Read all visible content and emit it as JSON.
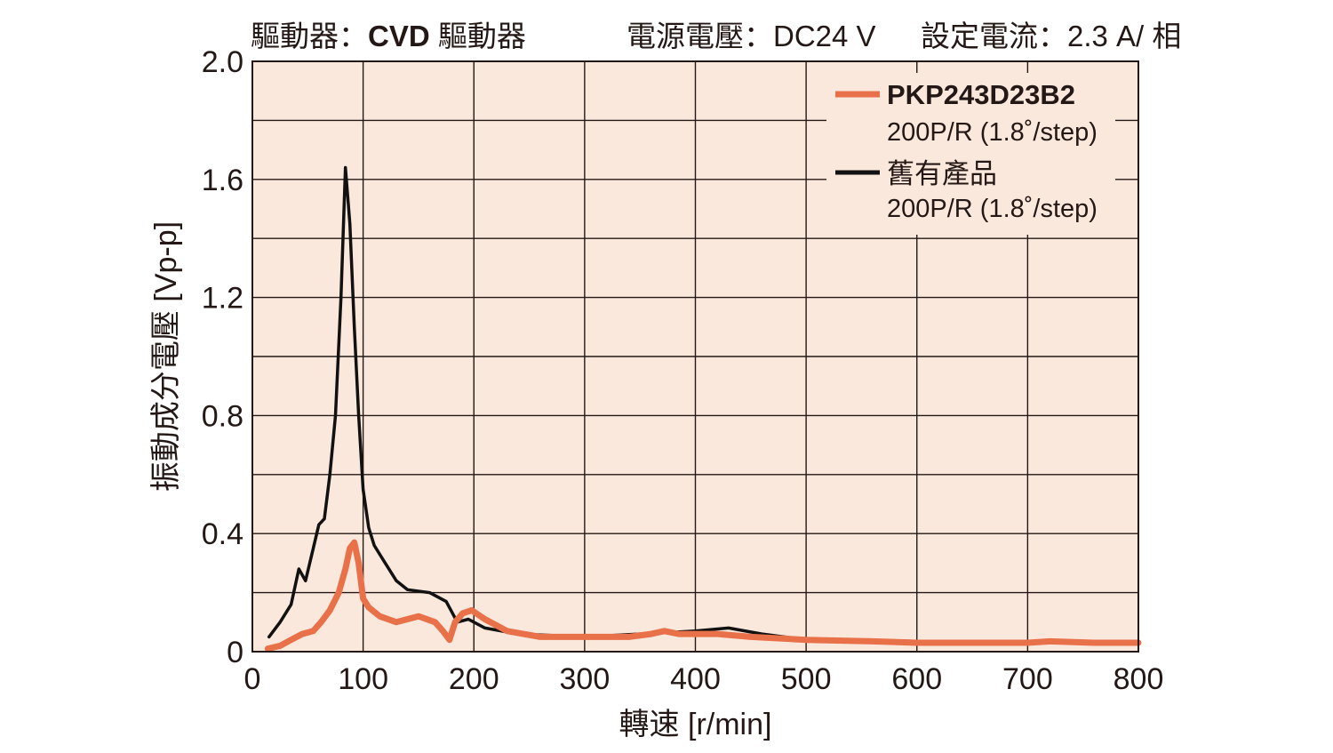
{
  "header": {
    "driver_label": "驅動器：",
    "driver_value_bold": "CVD",
    "driver_value_rest": " 驅動器",
    "voltage_label": "電源電壓：",
    "voltage_value": "DC24 V",
    "current_label": "設定電流：",
    "current_value": "2.3 A/ 相"
  },
  "colors": {
    "plot_background": "#fbe8dc",
    "grid": "#231815",
    "new_product": "#e8714a",
    "old_product": "#111111",
    "text": "#231815"
  },
  "chart_data": {
    "type": "line",
    "xlabel": "轉速 [r/min]",
    "ylabel": "振動成分電壓 [Vp-p]",
    "xlim": [
      0,
      800
    ],
    "ylim": [
      0,
      2.0
    ],
    "x_ticks": [
      0,
      100,
      200,
      300,
      400,
      500,
      600,
      700,
      800
    ],
    "x_tick_labels": [
      "0",
      "100",
      "200",
      "300",
      "400",
      "500",
      "600",
      "700",
      "800"
    ],
    "y_ticks": [
      0,
      0.4,
      0.8,
      1.2,
      1.6,
      2.0
    ],
    "y_tick_labels": [
      "0",
      "0.4",
      "0.8",
      "1.2",
      "1.6",
      "2.0"
    ],
    "grid": true,
    "legend_position": "top-right",
    "series": [
      {
        "name": "PKP243D23B2",
        "subtitle": "200P/R (1.8˚/step)",
        "color": "#e8714a",
        "x": [
          14,
          25,
          35,
          45,
          55,
          62,
          70,
          78,
          84,
          88,
          92,
          96,
          100,
          105,
          115,
          130,
          150,
          165,
          172,
          178,
          183,
          190,
          198,
          210,
          230,
          260,
          300,
          340,
          360,
          372,
          385,
          420,
          450,
          500,
          560,
          600,
          650,
          700,
          720,
          760,
          800
        ],
        "y": [
          0.01,
          0.02,
          0.04,
          0.06,
          0.07,
          0.1,
          0.14,
          0.2,
          0.28,
          0.35,
          0.37,
          0.3,
          0.18,
          0.15,
          0.12,
          0.1,
          0.12,
          0.1,
          0.07,
          0.04,
          0.1,
          0.13,
          0.14,
          0.11,
          0.07,
          0.05,
          0.05,
          0.05,
          0.06,
          0.07,
          0.06,
          0.06,
          0.05,
          0.04,
          0.035,
          0.03,
          0.03,
          0.03,
          0.035,
          0.03,
          0.03
        ]
      },
      {
        "name": "舊有產品",
        "subtitle": "200P/R (1.8˚/step)",
        "color": "#111111",
        "x": [
          15,
          25,
          35,
          42,
          48,
          55,
          60,
          65,
          70,
          75,
          80,
          84,
          88,
          92,
          96,
          100,
          105,
          110,
          120,
          130,
          140,
          160,
          175,
          185,
          195,
          210,
          240,
          300,
          350,
          400,
          430,
          460,
          500,
          550,
          600,
          650,
          700,
          750,
          800
        ],
        "y": [
          0.05,
          0.1,
          0.16,
          0.28,
          0.24,
          0.35,
          0.43,
          0.45,
          0.6,
          0.8,
          1.2,
          1.64,
          1.45,
          1.1,
          0.8,
          0.55,
          0.42,
          0.36,
          0.3,
          0.24,
          0.21,
          0.2,
          0.17,
          0.1,
          0.11,
          0.08,
          0.06,
          0.05,
          0.06,
          0.07,
          0.08,
          0.06,
          0.04,
          0.04,
          0.035,
          0.03,
          0.03,
          0.03,
          0.03
        ]
      }
    ]
  }
}
